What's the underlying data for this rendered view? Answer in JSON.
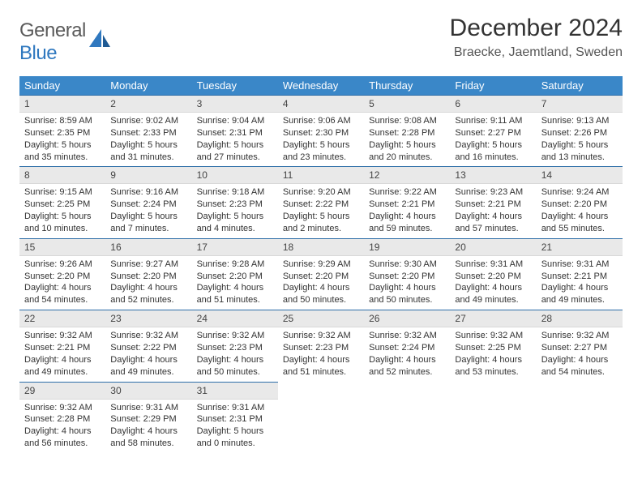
{
  "logo": {
    "word1": "General",
    "word2": "Blue"
  },
  "title": "December 2024",
  "location": "Braecke, Jaemtland, Sweden",
  "colors": {
    "header_bg": "#3a87c8",
    "header_text": "#ffffff",
    "daynum_bg": "#e9e9e9",
    "daynum_border_top": "#2d6ea8",
    "logo_gray": "#5b5b5b",
    "logo_blue": "#2f78bf",
    "body_text": "#333333",
    "page_bg": "#ffffff"
  },
  "weekdays": [
    "Sunday",
    "Monday",
    "Tuesday",
    "Wednesday",
    "Thursday",
    "Friday",
    "Saturday"
  ],
  "days": [
    {
      "n": "1",
      "sr": "8:59 AM",
      "ss": "2:35 PM",
      "dl": "5 hours and 35 minutes."
    },
    {
      "n": "2",
      "sr": "9:02 AM",
      "ss": "2:33 PM",
      "dl": "5 hours and 31 minutes."
    },
    {
      "n": "3",
      "sr": "9:04 AM",
      "ss": "2:31 PM",
      "dl": "5 hours and 27 minutes."
    },
    {
      "n": "4",
      "sr": "9:06 AM",
      "ss": "2:30 PM",
      "dl": "5 hours and 23 minutes."
    },
    {
      "n": "5",
      "sr": "9:08 AM",
      "ss": "2:28 PM",
      "dl": "5 hours and 20 minutes."
    },
    {
      "n": "6",
      "sr": "9:11 AM",
      "ss": "2:27 PM",
      "dl": "5 hours and 16 minutes."
    },
    {
      "n": "7",
      "sr": "9:13 AM",
      "ss": "2:26 PM",
      "dl": "5 hours and 13 minutes."
    },
    {
      "n": "8",
      "sr": "9:15 AM",
      "ss": "2:25 PM",
      "dl": "5 hours and 10 minutes."
    },
    {
      "n": "9",
      "sr": "9:16 AM",
      "ss": "2:24 PM",
      "dl": "5 hours and 7 minutes."
    },
    {
      "n": "10",
      "sr": "9:18 AM",
      "ss": "2:23 PM",
      "dl": "5 hours and 4 minutes."
    },
    {
      "n": "11",
      "sr": "9:20 AM",
      "ss": "2:22 PM",
      "dl": "5 hours and 2 minutes."
    },
    {
      "n": "12",
      "sr": "9:22 AM",
      "ss": "2:21 PM",
      "dl": "4 hours and 59 minutes."
    },
    {
      "n": "13",
      "sr": "9:23 AM",
      "ss": "2:21 PM",
      "dl": "4 hours and 57 minutes."
    },
    {
      "n": "14",
      "sr": "9:24 AM",
      "ss": "2:20 PM",
      "dl": "4 hours and 55 minutes."
    },
    {
      "n": "15",
      "sr": "9:26 AM",
      "ss": "2:20 PM",
      "dl": "4 hours and 54 minutes."
    },
    {
      "n": "16",
      "sr": "9:27 AM",
      "ss": "2:20 PM",
      "dl": "4 hours and 52 minutes."
    },
    {
      "n": "17",
      "sr": "9:28 AM",
      "ss": "2:20 PM",
      "dl": "4 hours and 51 minutes."
    },
    {
      "n": "18",
      "sr": "9:29 AM",
      "ss": "2:20 PM",
      "dl": "4 hours and 50 minutes."
    },
    {
      "n": "19",
      "sr": "9:30 AM",
      "ss": "2:20 PM",
      "dl": "4 hours and 50 minutes."
    },
    {
      "n": "20",
      "sr": "9:31 AM",
      "ss": "2:20 PM",
      "dl": "4 hours and 49 minutes."
    },
    {
      "n": "21",
      "sr": "9:31 AM",
      "ss": "2:21 PM",
      "dl": "4 hours and 49 minutes."
    },
    {
      "n": "22",
      "sr": "9:32 AM",
      "ss": "2:21 PM",
      "dl": "4 hours and 49 minutes."
    },
    {
      "n": "23",
      "sr": "9:32 AM",
      "ss": "2:22 PM",
      "dl": "4 hours and 49 minutes."
    },
    {
      "n": "24",
      "sr": "9:32 AM",
      "ss": "2:23 PM",
      "dl": "4 hours and 50 minutes."
    },
    {
      "n": "25",
      "sr": "9:32 AM",
      "ss": "2:23 PM",
      "dl": "4 hours and 51 minutes."
    },
    {
      "n": "26",
      "sr": "9:32 AM",
      "ss": "2:24 PM",
      "dl": "4 hours and 52 minutes."
    },
    {
      "n": "27",
      "sr": "9:32 AM",
      "ss": "2:25 PM",
      "dl": "4 hours and 53 minutes."
    },
    {
      "n": "28",
      "sr": "9:32 AM",
      "ss": "2:27 PM",
      "dl": "4 hours and 54 minutes."
    },
    {
      "n": "29",
      "sr": "9:32 AM",
      "ss": "2:28 PM",
      "dl": "4 hours and 56 minutes."
    },
    {
      "n": "30",
      "sr": "9:31 AM",
      "ss": "2:29 PM",
      "dl": "4 hours and 58 minutes."
    },
    {
      "n": "31",
      "sr": "9:31 AM",
      "ss": "2:31 PM",
      "dl": "5 hours and 0 minutes."
    }
  ],
  "labels": {
    "sunrise": "Sunrise:",
    "sunset": "Sunset:",
    "daylight": "Daylight:"
  }
}
